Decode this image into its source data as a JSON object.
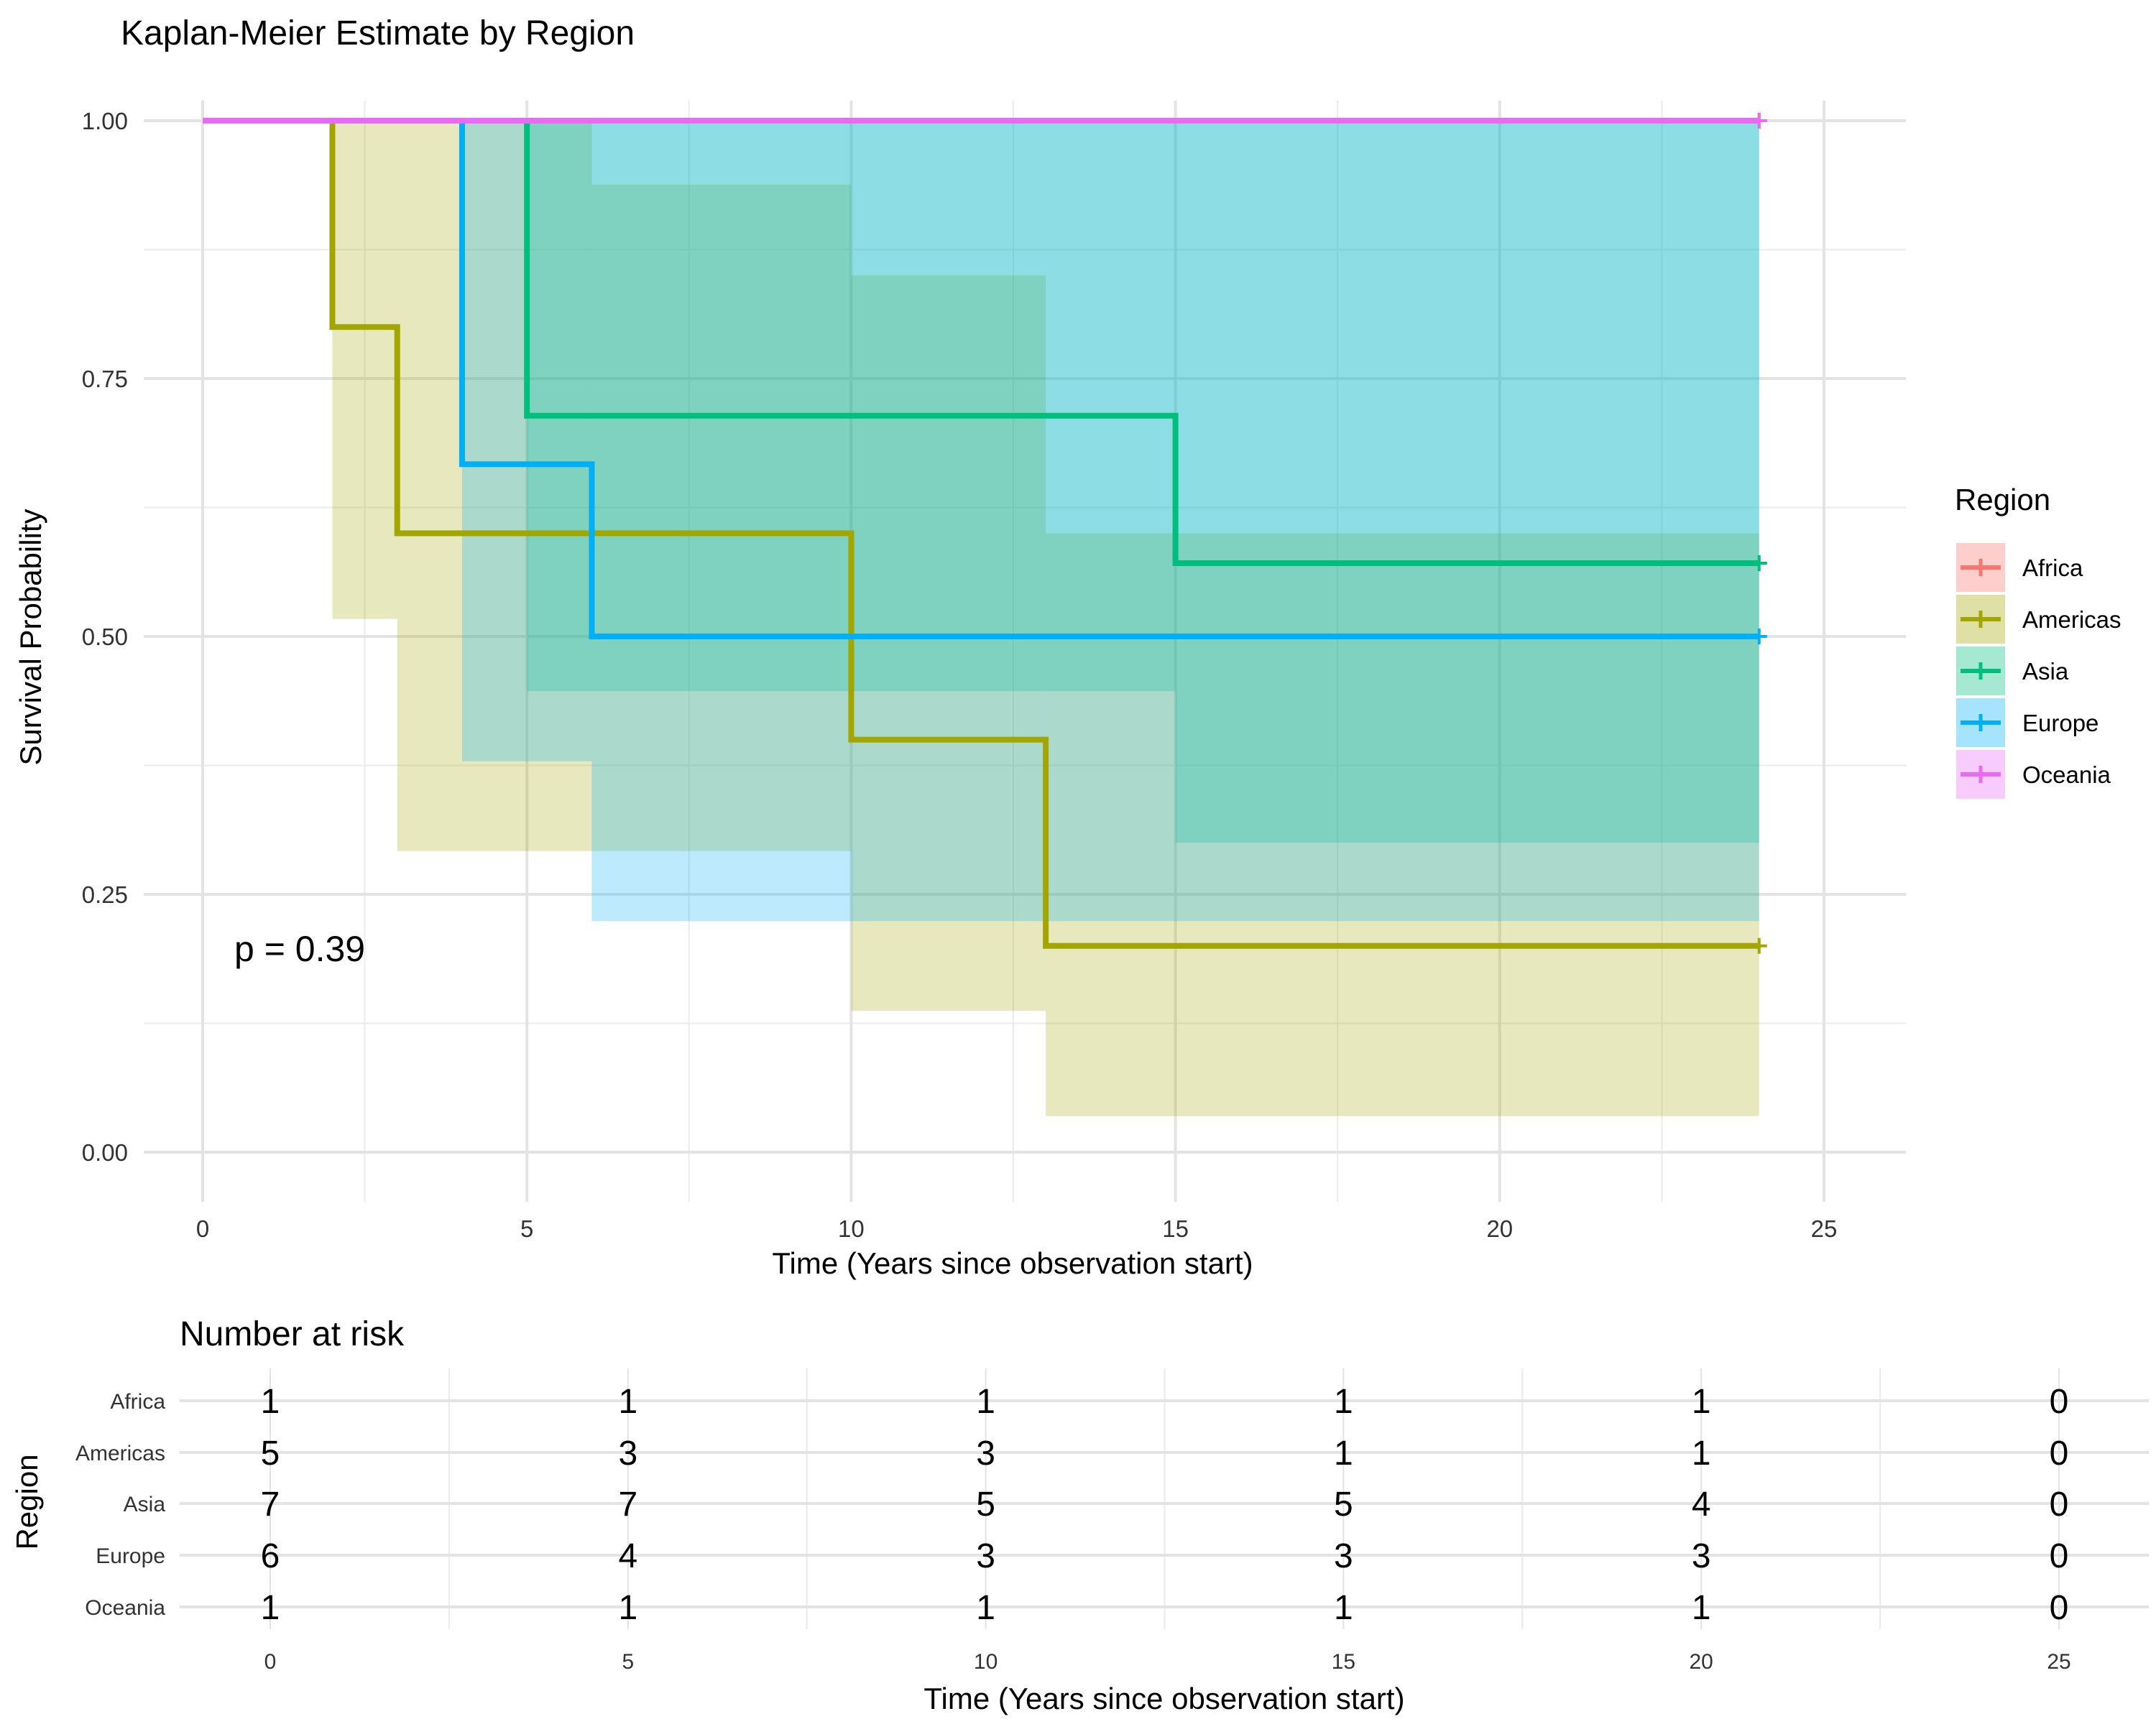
{
  "chart_data": [
    {
      "type": "line",
      "subtype": "kaplan-meier step",
      "title": "Kaplan-Meier Estimate by Region",
      "xlabel": "Time (Years since observation start)",
      "ylabel": "Survival Probability",
      "xlim": [
        0,
        25
      ],
      "ylim": [
        0,
        1
      ],
      "xticks": [
        "0",
        "5",
        "10",
        "15",
        "20",
        "25"
      ],
      "yticks": [
        "0.00",
        "0.25",
        "0.50",
        "0.75",
        "1.00"
      ],
      "grid": true,
      "legend": {
        "title": "Region",
        "position": "right"
      },
      "annotation": "p = 0.39",
      "series": [
        {
          "name": "Africa",
          "color": "#F8766D",
          "steps": [
            [
              0,
              1.0
            ],
            [
              24,
              1.0
            ]
          ],
          "censor_at": 24,
          "ci": []
        },
        {
          "name": "Americas",
          "color": "#A3A500",
          "steps": [
            [
              0,
              1.0
            ],
            [
              2,
              0.8
            ],
            [
              3,
              0.6
            ],
            [
              10,
              0.4
            ],
            [
              13,
              0.2
            ],
            [
              24,
              0.2
            ]
          ],
          "censor_at": 24,
          "ci": [
            [
              2,
              3,
              0.517,
              1.0
            ],
            [
              3,
              6,
              0.292,
              1.0
            ],
            [
              6,
              10,
              0.292,
              0.938
            ],
            [
              10,
              13,
              0.137,
              0.85
            ],
            [
              13,
              24,
              0.035,
              0.6
            ]
          ]
        },
        {
          "name": "Asia",
          "color": "#00BF7D",
          "steps": [
            [
              0,
              1.0
            ],
            [
              5,
              0.714
            ],
            [
              15,
              0.571
            ],
            [
              24,
              0.571
            ]
          ],
          "censor_at": 24,
          "ci": [
            [
              5,
              15,
              0.447,
              1.0
            ],
            [
              15,
              24,
              0.3,
              1.0
            ]
          ]
        },
        {
          "name": "Europe",
          "color": "#00B0F6",
          "steps": [
            [
              0,
              1.0
            ],
            [
              4,
              0.667
            ],
            [
              6,
              0.5
            ],
            [
              24,
              0.5
            ]
          ],
          "censor_at": 24,
          "ci": [
            [
              4,
              6,
              0.379,
              1.0
            ],
            [
              6,
              24,
              0.224,
              1.0
            ]
          ]
        },
        {
          "name": "Oceania",
          "color": "#E76BF3",
          "steps": [
            [
              0,
              1.0
            ],
            [
              24,
              1.0
            ]
          ],
          "censor_at": 24,
          "ci": []
        }
      ]
    },
    {
      "type": "table",
      "title": "Number at risk",
      "xlabel": "Time (Years since observation start)",
      "ylabel": "Region",
      "times": [
        "0",
        "5",
        "10",
        "15",
        "20",
        "25"
      ],
      "rows": [
        {
          "name": "Africa",
          "values": [
            "1",
            "1",
            "1",
            "1",
            "1",
            "0"
          ]
        },
        {
          "name": "Americas",
          "values": [
            "5",
            "3",
            "3",
            "1",
            "1",
            "0"
          ]
        },
        {
          "name": "Asia",
          "values": [
            "7",
            "7",
            "5",
            "5",
            "4",
            "0"
          ]
        },
        {
          "name": "Europe",
          "values": [
            "6",
            "4",
            "3",
            "3",
            "3",
            "0"
          ]
        },
        {
          "name": "Oceania",
          "values": [
            "1",
            "1",
            "1",
            "1",
            "1",
            "0"
          ]
        }
      ]
    }
  ]
}
